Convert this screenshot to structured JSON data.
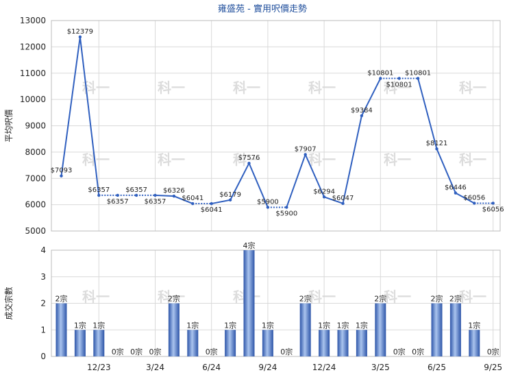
{
  "title": "雍盛苑 - 實用呎價走勢",
  "watermark": "科一",
  "chart_data": [
    {
      "type": "line",
      "ylabel": "平均呎價",
      "ylim": [
        5000,
        13000
      ],
      "yticks": [
        5000,
        6000,
        7000,
        8000,
        9000,
        10000,
        11000,
        12000,
        13000
      ],
      "grid": true,
      "series": [
        {
          "values": [
            7093,
            12379,
            6357,
            6357,
            6357,
            6357,
            6326,
            6041,
            6041,
            6179,
            7576,
            5900,
            5900,
            7907,
            6294,
            6047,
            9384,
            10801,
            10801,
            10801,
            8121,
            6446,
            6056,
            6056
          ],
          "labels": [
            "$7093",
            "$12379",
            "$6357",
            "$6357",
            "$6357",
            "$6357",
            "$6326",
            "$6041",
            "$6041",
            "$6179",
            "$7576",
            "$5900",
            "$5900",
            "$7907",
            "$6294",
            "$6047",
            "$9384",
            "$10801",
            "$10801",
            "$10801",
            "$8121",
            "$6446",
            "$6056",
            "$6056"
          ],
          "no_transaction_months": [
            3,
            4,
            5,
            8,
            12,
            18,
            19,
            23
          ]
        }
      ]
    },
    {
      "type": "bar",
      "ylabel": "成交宗數",
      "ylim": [
        0,
        4
      ],
      "yticks": [
        0,
        1,
        2,
        3,
        4
      ],
      "grid": true,
      "categories": [
        "12/23",
        "3/24",
        "6/24",
        "9/24",
        "12/24",
        "3/25",
        "6/25",
        "9/25"
      ],
      "values": [
        2,
        1,
        1,
        0,
        0,
        0,
        2,
        1,
        0,
        1,
        4,
        1,
        0,
        2,
        1,
        1,
        1,
        2,
        0,
        0,
        2,
        2,
        1,
        0
      ],
      "labels": [
        "2宗",
        "1宗",
        "1宗",
        "0宗",
        "0宗",
        "0宗",
        "2宗",
        "1宗",
        "0宗",
        "1宗",
        "4宗",
        "1宗",
        "0宗",
        "2宗",
        "1宗",
        "1宗",
        "1宗",
        "2宗",
        "0宗",
        "0宗",
        "2宗",
        "2宗",
        "1宗",
        "0宗"
      ]
    }
  ]
}
